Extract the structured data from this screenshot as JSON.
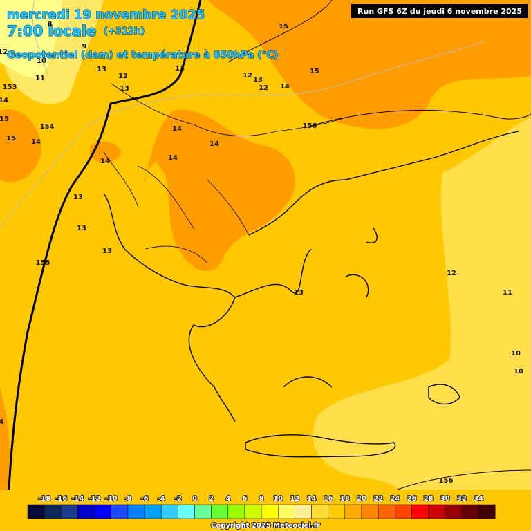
{
  "header": {
    "date": "mercredi 19 novembre 2025",
    "time": "7:00 locale",
    "offset": "(+312h)",
    "subtitle": "Geopotentiel (dam) et température à 850hPa (°C)",
    "run": "Run GFS 6Z du jeudi 6 novembre 2025"
  },
  "contour_labels": [
    "15",
    "15",
    "13",
    "13",
    "12",
    "12",
    "13",
    "12",
    "14",
    "13",
    "11",
    "10",
    "8",
    "9",
    "12",
    "153",
    "14",
    "15",
    "154",
    "15",
    "14",
    "156",
    "14",
    "14",
    "14",
    "14",
    "13",
    "13",
    "13",
    "155",
    "13",
    "12",
    "11",
    "10",
    "10",
    "156",
    "4"
  ],
  "legend": {
    "ticks": [
      -18,
      -16,
      -14,
      -12,
      -10,
      -8,
      -6,
      -4,
      -2,
      0,
      2,
      4,
      6,
      8,
      10,
      12,
      14,
      16,
      18,
      20,
      22,
      24,
      26,
      28,
      30,
      32,
      34
    ],
    "colors": [
      "#0a0a3c",
      "#0d2a5a",
      "#1a3a8c",
      "#0000cc",
      "#0000ff",
      "#1a4aff",
      "#0080ff",
      "#00a0ff",
      "#33ccff",
      "#66ffff",
      "#66ff99",
      "#66ff33",
      "#99ff00",
      "#ccff00",
      "#ffff00",
      "#ffff66",
      "#ffee99",
      "#ffdd33",
      "#ffcc00",
      "#ffaa00",
      "#ff8800",
      "#ff6600",
      "#ff4400",
      "#ff0000",
      "#cc0000",
      "#990000",
      "#660000",
      "#400000"
    ]
  },
  "copyright": "Copyright 2025 Meteociel.fr"
}
